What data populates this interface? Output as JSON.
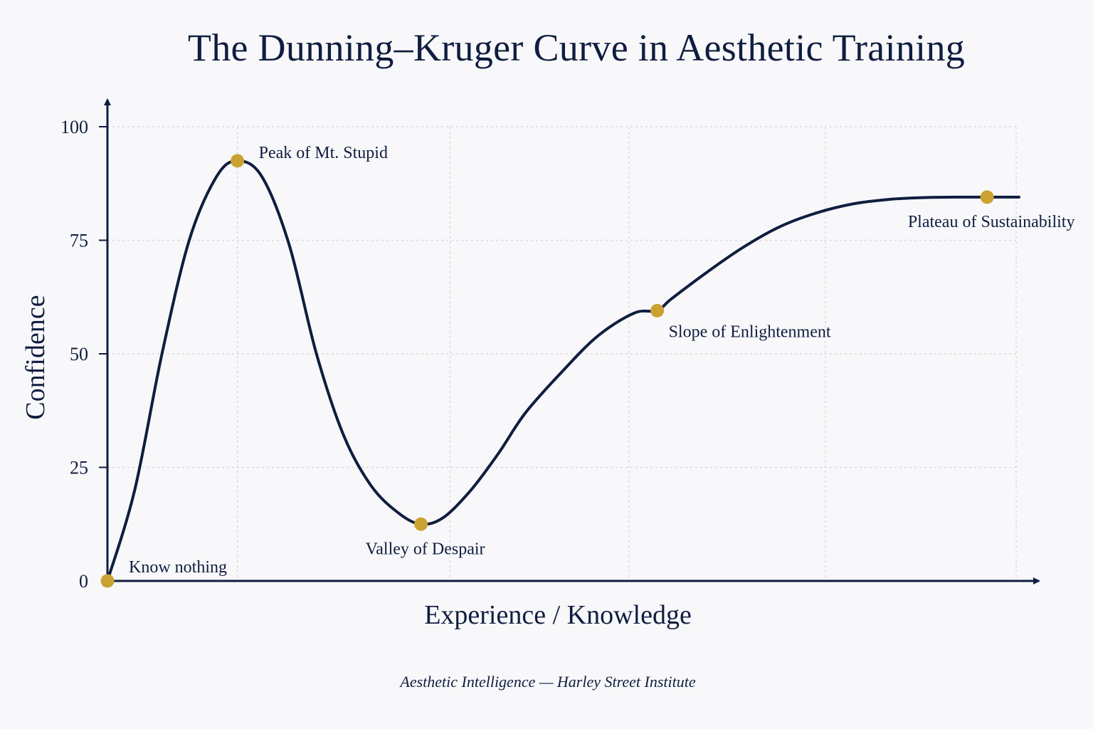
{
  "title": "The Dunning–Kruger Curve in Aesthetic Training",
  "footer": "Aesthetic Intelligence — Harley Street Institute",
  "colors": {
    "navy": "#0f1d3f",
    "gold": "#c9a233",
    "grid": "#d3d3d8",
    "background": "#f8f8fa"
  },
  "chart_data": {
    "type": "line",
    "title": "The Dunning–Kruger Curve in Aesthetic Training",
    "xlabel": "Experience / Knowledge",
    "ylabel": "Confidence",
    "xlim": [
      0,
      100
    ],
    "ylim": [
      0,
      100
    ],
    "x_ticks_labeled": false,
    "yticks": [
      0,
      25,
      50,
      75,
      100
    ],
    "grid": true,
    "legend": "none",
    "series": [
      {
        "x": [
          0,
          3,
          6,
          9,
          12,
          14.3,
          17,
          20,
          23,
          26,
          29,
          32,
          34.5,
          37,
          40,
          43,
          46,
          50,
          54,
          58,
          60.5,
          62,
          66,
          70,
          74,
          78,
          82,
          86,
          90,
          94,
          100
        ],
        "y": [
          0,
          20,
          50,
          75,
          89,
          92.5,
          89,
          74,
          50,
          32,
          21,
          15,
          12.5,
          14,
          20,
          28,
          37,
          46,
          54,
          59,
          59.5,
          62,
          68,
          73.5,
          78,
          81,
          83,
          84,
          84.4,
          84.5,
          84.5
        ]
      }
    ],
    "annotations": [
      {
        "label": "Know nothing",
        "x": 0,
        "y": 0,
        "anchor": "right"
      },
      {
        "label": "Peak of Mt. Stupid",
        "x": 14.3,
        "y": 92.5,
        "anchor": "right"
      },
      {
        "label": "Valley of Despair",
        "x": 34.5,
        "y": 12.5,
        "anchor": "below"
      },
      {
        "label": "Slope of Enlightenment",
        "x": 60.5,
        "y": 59.5,
        "anchor": "below-right"
      },
      {
        "label": "Plateau of Sustainability",
        "x": 96.8,
        "y": 84.5,
        "anchor": "below"
      }
    ]
  }
}
